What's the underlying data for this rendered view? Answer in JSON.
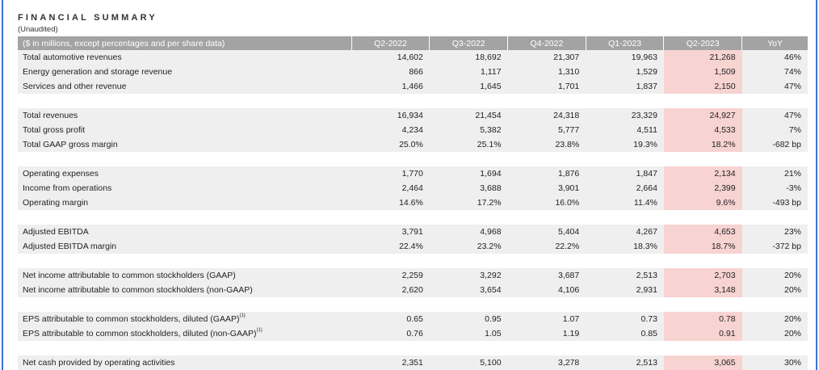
{
  "title": "FINANCIAL SUMMARY",
  "subtitle": "(Unaudited)",
  "colors": {
    "header_bg": "#a3a3a3",
    "row_bg": "#efefef",
    "highlight": "#f7d3d1",
    "frame": "#3b6fd6"
  },
  "header": {
    "label": "($ in millions, except percentages and per share data)",
    "columns": [
      "Q2-2022",
      "Q3-2022",
      "Q4-2022",
      "Q1-2023",
      "Q2-2023",
      "YoY"
    ]
  },
  "groups": [
    {
      "rows": [
        {
          "label": "Total automotive revenues",
          "values": [
            "14,602",
            "18,692",
            "21,307",
            "19,963",
            "21,268",
            "46%"
          ]
        },
        {
          "label": "Energy generation and storage revenue",
          "values": [
            "866",
            "1,117",
            "1,310",
            "1,529",
            "1,509",
            "74%"
          ]
        },
        {
          "label": "Services and other revenue",
          "values": [
            "1,466",
            "1,645",
            "1,701",
            "1,837",
            "2,150",
            "47%"
          ]
        }
      ]
    },
    {
      "rows": [
        {
          "label": "Total revenues",
          "values": [
            "16,934",
            "21,454",
            "24,318",
            "23,329",
            "24,927",
            "47%"
          ]
        },
        {
          "label": "Total gross profit",
          "values": [
            "4,234",
            "5,382",
            "5,777",
            "4,511",
            "4,533",
            "7%"
          ]
        },
        {
          "label": "Total GAAP gross margin",
          "values": [
            "25.0%",
            "25.1%",
            "23.8%",
            "19.3%",
            "18.2%",
            "-682 bp"
          ]
        }
      ]
    },
    {
      "rows": [
        {
          "label": "Operating expenses",
          "values": [
            "1,770",
            "1,694",
            "1,876",
            "1,847",
            "2,134",
            "21%"
          ]
        },
        {
          "label": "Income from operations",
          "values": [
            "2,464",
            "3,688",
            "3,901",
            "2,664",
            "2,399",
            "-3%"
          ]
        },
        {
          "label": "Operating margin",
          "values": [
            "14.6%",
            "17.2%",
            "16.0%",
            "11.4%",
            "9.6%",
            "-493 bp"
          ]
        }
      ]
    },
    {
      "rows": [
        {
          "label": "Adjusted EBITDA",
          "values": [
            "3,791",
            "4,968",
            "5,404",
            "4,267",
            "4,653",
            "23%"
          ]
        },
        {
          "label": "Adjusted EBITDA margin",
          "values": [
            "22.4%",
            "23.2%",
            "22.2%",
            "18.3%",
            "18.7%",
            "-372 bp"
          ]
        }
      ]
    },
    {
      "rows": [
        {
          "label": "Net income attributable to common stockholders (GAAP)",
          "values": [
            "2,259",
            "3,292",
            "3,687",
            "2,513",
            "2,703",
            "20%"
          ]
        },
        {
          "label": "Net income attributable to common stockholders (non-GAAP)",
          "values": [
            "2,620",
            "3,654",
            "4,106",
            "2,931",
            "3,148",
            "20%"
          ]
        }
      ]
    },
    {
      "rows": [
        {
          "label": "EPS attributable to common stockholders, diluted (GAAP)",
          "sup": "(1)",
          "values": [
            "0.65",
            "0.95",
            "1.07",
            "0.73",
            "0.78",
            "20%"
          ]
        },
        {
          "label": "EPS attributable to common stockholders, diluted (non-GAAP)",
          "sup": "(1)",
          "values": [
            "0.76",
            "1.05",
            "1.19",
            "0.85",
            "0.91",
            "20%"
          ]
        }
      ]
    },
    {
      "rows": [
        {
          "label": "Net cash provided by operating activities",
          "values": [
            "2,351",
            "5,100",
            "3,278",
            "2,513",
            "3,065",
            "30%"
          ]
        }
      ]
    }
  ]
}
